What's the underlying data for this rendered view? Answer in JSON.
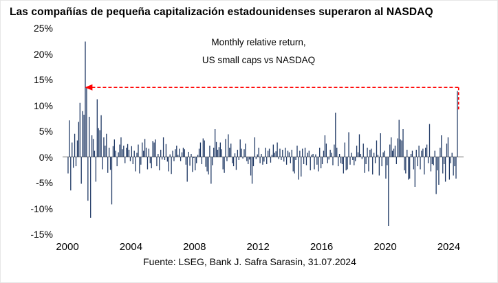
{
  "title": "Las compañías de pequeña capitalización estadounidenses superaron al NASDAQ",
  "annotation": {
    "line1": "Monthly relative return,",
    "line2": "US small caps vs NASDAQ"
  },
  "footer": "Fuente: LSEG, Bank J. Safra Sarasin, 31.07.2024",
  "chart_data": {
    "type": "bar",
    "title": "Monthly relative return, US small caps vs NASDAQ",
    "xlabel": "",
    "ylabel": "Monthly relative return (%)",
    "x_start_year": 2000,
    "x_step_months": 1,
    "ylim": [
      -15,
      25
    ],
    "ytick_step": 5,
    "ytick_labels": [
      "25%",
      "20%",
      "15%",
      "10%",
      "5%",
      "0%",
      "-5%",
      "-10%",
      "-15%"
    ],
    "xticks": [
      2000,
      2004,
      2008,
      2012,
      2016,
      2020,
      2024
    ],
    "grid": false,
    "legend": false,
    "bar_color": "#1F3864",
    "zero_line_color": "#333333",
    "reference_line": {
      "y": 13.5,
      "x_from": 2001.1,
      "x_to": 2024.62,
      "drop_to_y": 9.0,
      "color": "#FF0000",
      "style": "dashed",
      "arrow": "left"
    },
    "values": [
      -3.2,
      7.1,
      -6.5,
      2.8,
      -2.1,
      4.5,
      -1.8,
      3.2,
      6.8,
      10.5,
      -5.2,
      8.9,
      8.2,
      22.4,
      13.4,
      -8.5,
      7.8,
      -11.8,
      4.2,
      3.5,
      1.2,
      -4.8,
      11.2,
      5.6,
      5.2,
      8.1,
      -2.4,
      3.8,
      2.2,
      4.5,
      -3.1,
      1.8,
      -2.5,
      -9.2,
      2.1,
      3.4,
      1.2,
      -1.8,
      0.9,
      2.4,
      3.8,
      1.5,
      2.2,
      -1.2,
      1.8,
      2.5,
      1.4,
      -0.8,
      2.1,
      -1.4,
      1.2,
      -2.8,
      0.8,
      2.4,
      -3.2,
      -1.5,
      2.8,
      1.2,
      3.5,
      1.8,
      -2.4,
      1.6,
      -1.2,
      -2.2,
      3.1,
      2.8,
      3.4,
      -1.8,
      0.6,
      -2.6,
      1.4,
      -0.5,
      3.8,
      -0.6,
      2.5,
      -0.9,
      -2.8,
      0.5,
      -3.3,
      1.2,
      -0.8,
      1.5,
      2.2,
      0.4,
      1.6,
      -0.8,
      0.9,
      1.8,
      1.5,
      -1.5,
      -4.8,
      1.0,
      -1.7,
      0.6,
      -2.9,
      -0.2,
      -2.6,
      -1.2,
      0.4,
      1.6,
      2.8,
      -1.4,
      3.6,
      3.2,
      -1.9,
      -2.8,
      -3.4,
      2.2,
      -5.2,
      -1.6,
      1.8,
      5.4,
      2.9,
      1.4,
      1.9,
      2.8,
      1.5,
      -2.4,
      -3.1,
      3.5,
      -0.8,
      4.4,
      1.8,
      2.6,
      -1.2,
      -1.8,
      0.7,
      -2.5,
      1.4,
      -0.6,
      3.4,
      1.6,
      -0.3,
      1.5,
      2.6,
      -0.8,
      -1.4,
      -0.5,
      -3.6,
      -5.2,
      -1.8,
      3.8,
      -0.4,
      0.5,
      1.8,
      -1.2,
      0.6,
      -1.5,
      -0.9,
      1.8,
      -1.4,
      1.2,
      1.6,
      -1.1,
      0.4,
      2.4,
      0.8,
      1.1,
      2.8,
      -0.4,
      1.6,
      -0.6,
      1.4,
      -0.9,
      1.8,
      -1.5,
      1.2,
      0.9,
      -1.2,
      1.4,
      -2.8,
      -3.2,
      -0.6,
      2.2,
      -4.4,
      1.2,
      -3.8,
      1.6,
      -1.4,
      1.8,
      -1.6,
      0.8,
      1.2,
      -2.6,
      0.4,
      0.6,
      -2.4,
      0.5,
      -1.5,
      -2.8,
      1.8,
      -2.2,
      -1.4,
      1.2,
      4.2,
      2.6,
      -1.2,
      -0.5,
      1.4,
      0.8,
      -1.6,
      2.4,
      8.6,
      1.8,
      -1.8,
      0.6,
      -1.2,
      -1.4,
      -3.2,
      2.8,
      -2.6,
      -2.4,
      4.8,
      -1.5,
      0.8,
      -0.6,
      -1.6,
      -0.8,
      2.2,
      0.9,
      4.4,
      0.6,
      -0.4,
      2.6,
      -3.1,
      -1.4,
      1.8,
      -2.8,
      1.4,
      1.6,
      -3.4,
      0.8,
      -1.2,
      3.2,
      0.4,
      -3.6,
      4.6,
      -1.8,
      0.9,
      1.2,
      -4.2,
      -1.6,
      -13.4,
      2.4,
      3.8,
      1.2,
      1.6,
      2.2,
      -1.4,
      3.6,
      7.2,
      3.4,
      3.2,
      5.4,
      -2.6,
      -3.2,
      1.4,
      -4.4,
      -4.2,
      0.6,
      1.2,
      -2.4,
      -5.8,
      1.4,
      -1.8,
      2.2,
      -2.4,
      1.2,
      1.6,
      -3.4,
      1.8,
      2.4,
      -1.2,
      6.4,
      -2.8,
      -1.4,
      -1.6,
      1.2,
      -7.2,
      -2.6,
      -5.4,
      1.8,
      4.2,
      -3.2,
      -1.4,
      -4.8,
      2.6,
      3.8,
      -4.4,
      -1.2,
      0.8,
      -3.6,
      -1.8,
      -4.2,
      12.8
    ]
  }
}
